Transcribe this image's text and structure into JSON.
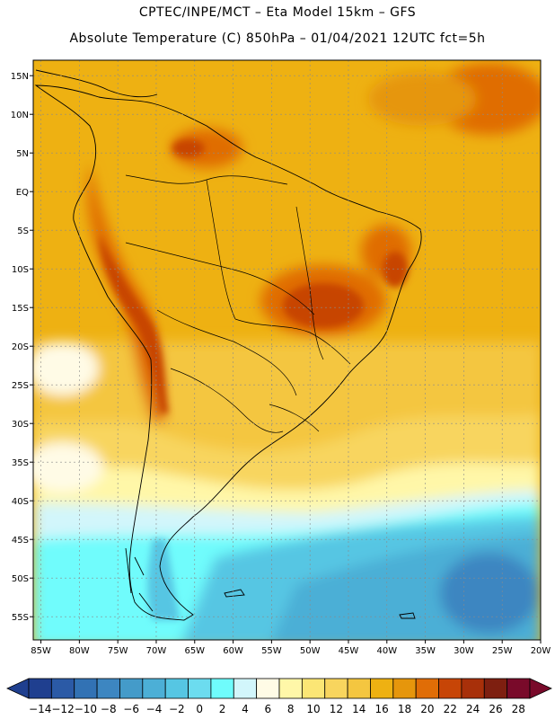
{
  "header": {
    "title_line1": "CPTEC/INPE/MCT –   Eta Model 15km – GFS",
    "title_line2": "Absolute Temperature (C) 850hPa – 01/04/2021 12UTC fct=5h"
  },
  "map": {
    "lat_ticks": [
      "15N",
      "10N",
      "5N",
      "EQ",
      "5S",
      "10S",
      "15S",
      "20S",
      "25S",
      "30S",
      "35S",
      "40S",
      "45S",
      "50S",
      "55S"
    ],
    "lon_ticks": [
      "85W",
      "80W",
      "75W",
      "70W",
      "65W",
      "60W",
      "55W",
      "50W",
      "45W",
      "40W",
      "35W",
      "30W",
      "25W",
      "20W"
    ],
    "lat_range": [
      17,
      -58
    ],
    "lon_range": [
      -86,
      -20
    ],
    "grid": true,
    "gridlines_dashed": true
  },
  "colorbar": {
    "labels": [
      "-14",
      "-12",
      "-10",
      "-8",
      "-6",
      "-4",
      "-2",
      "0",
      "2",
      "4",
      "6",
      "8",
      "10",
      "12",
      "14",
      "16",
      "18",
      "20",
      "22",
      "24",
      "26",
      "28"
    ],
    "colors": [
      "#1f3f8f",
      "#2b5aa6",
      "#3272b4",
      "#3d86c1",
      "#449bc9",
      "#4cafd6",
      "#56c6e3",
      "#6cdcef",
      "#6ffcfc",
      "#d2f6fb",
      "#fffbe6",
      "#fff7a8",
      "#fbe675",
      "#f8d55e",
      "#f4c640",
      "#eeb112",
      "#e6960c",
      "#e06d06",
      "#c74506",
      "#a8300a",
      "#7e1f10",
      "#790a2a"
    ]
  }
}
